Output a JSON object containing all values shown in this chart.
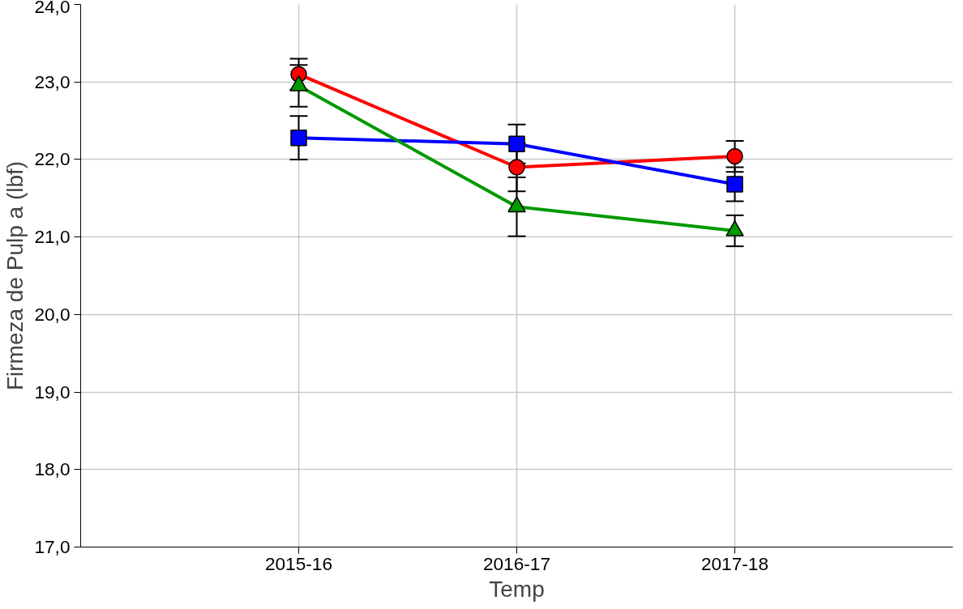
{
  "chart_data": {
    "type": "line",
    "xlabel": "Temp",
    "ylabel": "Firmeza de Pulp a (lbf)",
    "categories": [
      "2015-16",
      "2016-17",
      "2017-18"
    ],
    "ylim": [
      17,
      24
    ],
    "yticks": [
      {
        "value": 17,
        "label": "17,0"
      },
      {
        "value": 18,
        "label": "18,0"
      },
      {
        "value": 19,
        "label": "19,0"
      },
      {
        "value": 20,
        "label": "20,0"
      },
      {
        "value": 21,
        "label": "21,0"
      },
      {
        "value": 22,
        "label": "22,0"
      },
      {
        "value": 23,
        "label": "23,0"
      },
      {
        "value": 24,
        "label": "24,0"
      }
    ],
    "grid": true,
    "line_style": "solid",
    "series": [
      {
        "color": "#ff0000",
        "marker": "circle",
        "values": [
          23.1,
          21.9,
          22.04
        ],
        "errors": [
          0.2,
          0.31,
          0.2
        ]
      },
      {
        "color": "#0000ff",
        "marker": "square",
        "values": [
          22.28,
          22.2,
          21.68
        ],
        "errors": [
          0.28,
          0.25,
          0.22
        ]
      },
      {
        "color": "#009900",
        "marker": "triangle",
        "values": [
          22.95,
          21.39,
          21.08
        ],
        "errors": [
          0.27,
          0.38,
          0.2
        ]
      }
    ]
  }
}
